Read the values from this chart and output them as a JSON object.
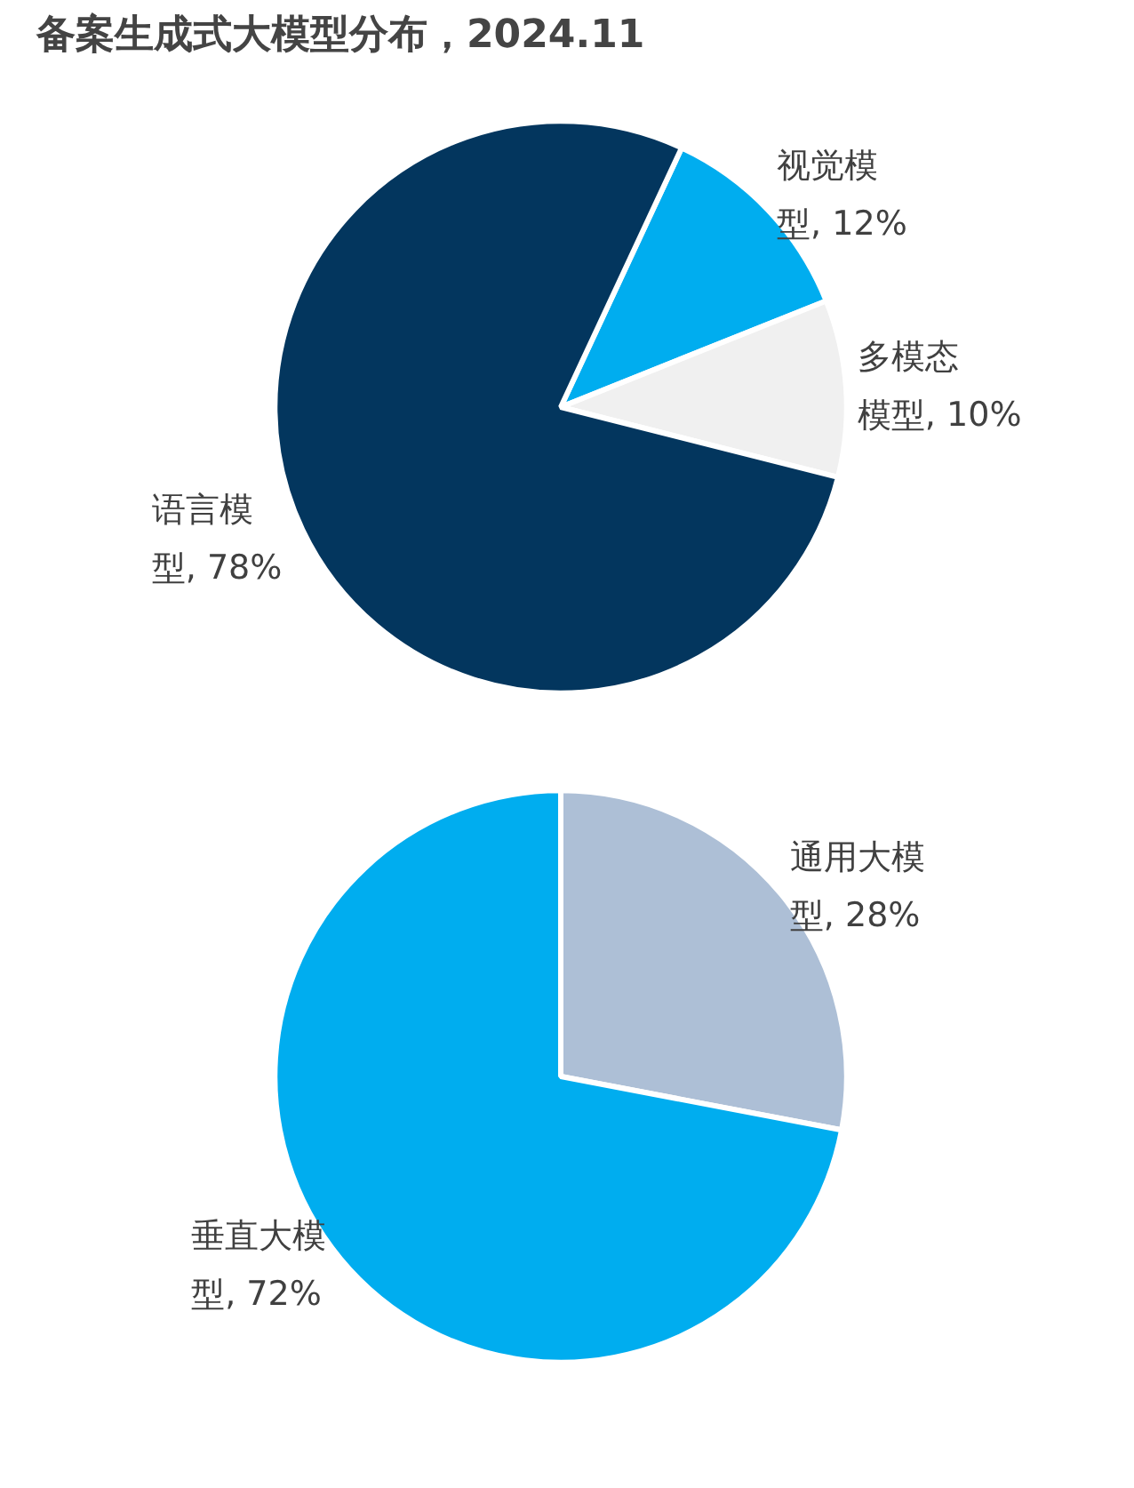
{
  "chart_data": [
    {
      "type": "pie",
      "title": "备案生成式大模型分布，2024.11",
      "categories": [
        "视觉模型",
        "多模态模型",
        "语言模型"
      ],
      "values": [
        12,
        10,
        78
      ],
      "colors": [
        "#00adef",
        "#f0f0f0",
        "#03365e"
      ],
      "value_labels": [
        ", 12%",
        ", 10%",
        ", 78%"
      ]
    },
    {
      "type": "pie",
      "categories": [
        "通用大模型",
        "垂直大模型"
      ],
      "values": [
        28,
        72
      ],
      "colors": [
        "#adbfd6",
        "#00adef"
      ],
      "value_labels": [
        ", 28%",
        ", 72%"
      ]
    }
  ]
}
